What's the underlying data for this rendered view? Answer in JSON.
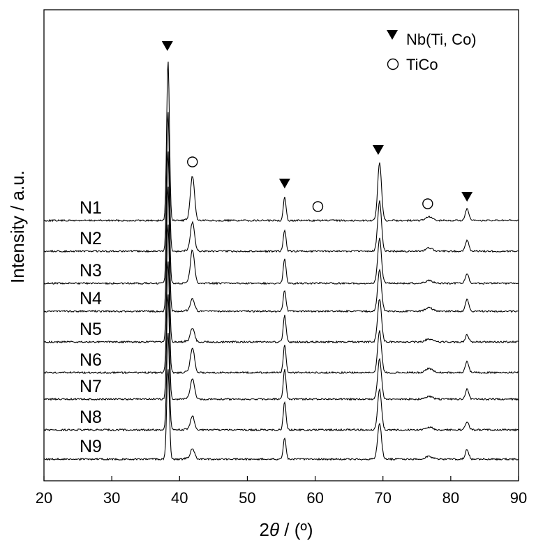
{
  "chart_data": {
    "type": "line",
    "xlabel_prefix": "2",
    "xlabel_symbol": "θ",
    "xlabel_unit": " / (º)",
    "ylabel": "Intensity / a.u.",
    "xlim": [
      20,
      90
    ],
    "x_ticks": [
      "20",
      "30",
      "40",
      "50",
      "60",
      "70",
      "80",
      "90"
    ],
    "grid": false,
    "legend_position": "top-right",
    "legend": [
      {
        "marker": "filled-down-triangle",
        "label": "Nb(Ti, Co)"
      },
      {
        "marker": "open-circle",
        "label": "TiCo"
      }
    ],
    "peak_markers": [
      {
        "x": 38.2,
        "marker": "filled-down-triangle"
      },
      {
        "x": 41.9,
        "marker": "open-circle"
      },
      {
        "x": 55.5,
        "marker": "filled-down-triangle"
      },
      {
        "x": 60.4,
        "marker": "open-circle"
      },
      {
        "x": 69.3,
        "marker": "filled-down-triangle"
      },
      {
        "x": 76.6,
        "marker": "open-circle"
      },
      {
        "x": 82.4,
        "marker": "filled-down-triangle"
      }
    ],
    "peaks_x": [
      38.3,
      41.9,
      55.5,
      69.5,
      76.8,
      82.4
    ],
    "series": [
      {
        "name": "N1",
        "peak_heights": [
          230,
          64,
          34,
          82,
          5,
          17
        ]
      },
      {
        "name": "N2",
        "peak_heights": [
          200,
          42,
          30,
          72,
          5,
          16
        ]
      },
      {
        "name": "N3",
        "peak_heights": [
          190,
          48,
          36,
          64,
          4,
          14
        ]
      },
      {
        "name": "N4",
        "peak_heights": [
          180,
          18,
          30,
          60,
          5,
          17
        ]
      },
      {
        "name": "N5",
        "peak_heights": [
          170,
          20,
          38,
          62,
          4,
          10
        ]
      },
      {
        "name": "N6",
        "peak_heights": [
          160,
          36,
          40,
          60,
          6,
          16
        ]
      },
      {
        "name": "N7",
        "peak_heights": [
          150,
          30,
          42,
          58,
          4,
          14
        ]
      },
      {
        "name": "N8",
        "peak_heights": [
          140,
          20,
          40,
          58,
          4,
          12
        ]
      },
      {
        "name": "N9",
        "peak_heights": [
          130,
          16,
          30,
          52,
          4,
          14
        ]
      }
    ]
  }
}
